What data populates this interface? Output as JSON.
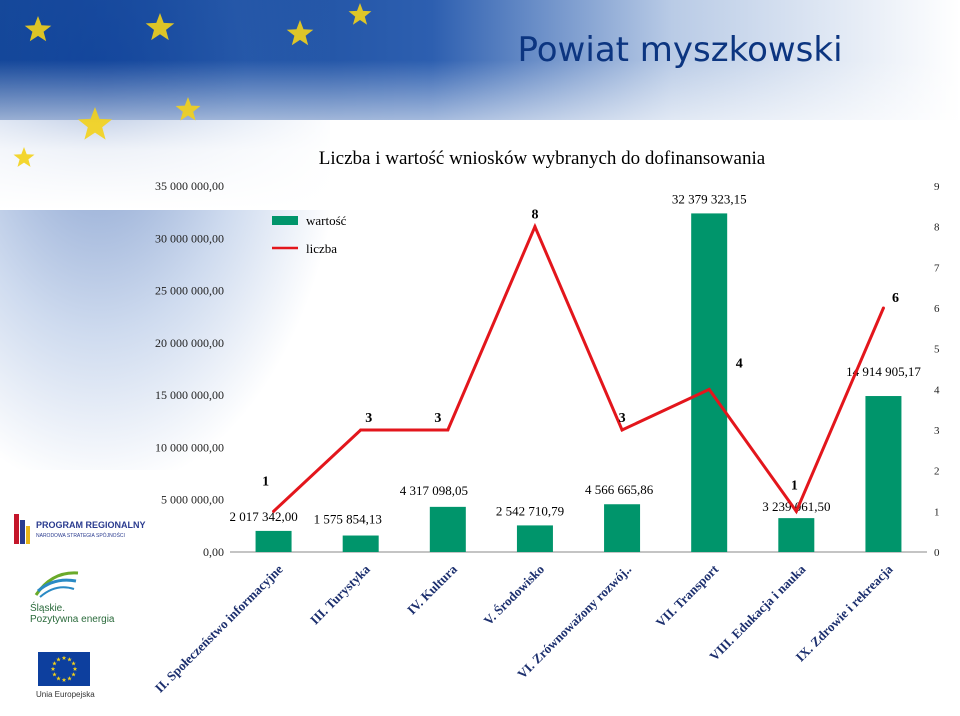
{
  "slide_title": "Powiat myszkowski",
  "logos": {
    "program_regionalny": "PROGRAM REGIONALNY",
    "program_regionalny_sub": "NARODOWA STRATEGIA SPÓJNOŚCI",
    "slaskie": "Śląskie.",
    "slaskie_tagline": "Pozytywna energia",
    "ue": "Unia Europejska"
  },
  "chart_data": {
    "type": "bar",
    "title": "Liczba i wartość wniosków wybranych do dofinansowania",
    "categories": [
      "II. Społeczeństwo informacyjne",
      "III. Turystyka",
      "IV. Kultura",
      "V. Środowisko",
      "VI. Zrównoważony rozwój..",
      "VII. Transport",
      "VIII. Edukacja i nauka",
      "IX. Zdrowie i rekreacja"
    ],
    "series": [
      {
        "name": "wartość",
        "type": "bar",
        "axis": "left",
        "color": "#00956b",
        "values": [
          2017342.0,
          1575854.13,
          4317098.05,
          2542710.79,
          4566665.86,
          32379323.15,
          3239061.5,
          14914905.17
        ],
        "labels": [
          "2 017 342,00",
          "1 575 854,13",
          "4 317 098,05",
          "2 542 710,79",
          "4 566 665,86",
          "32 379 323,15",
          "3 239 061,50",
          "14 914 905,17"
        ]
      },
      {
        "name": "liczba",
        "type": "line",
        "axis": "right",
        "color": "#e3161c",
        "values": [
          1,
          3,
          3,
          8,
          3,
          4,
          1,
          6
        ],
        "labels": [
          "1",
          "3",
          "3",
          "8",
          "3",
          "4",
          "1",
          "6"
        ]
      }
    ],
    "y_left": {
      "min": 0,
      "max": 35000000,
      "step": 5000000,
      "tick_labels": [
        "0,00",
        "5 000 000,00",
        "10 000 000,00",
        "15 000 000,00",
        "20 000 000,00",
        "25 000 000,00",
        "30 000 000,00",
        "35 000 000,00"
      ]
    },
    "y_right": {
      "min": 0,
      "max": 9,
      "step": 1,
      "tick_labels": [
        "0",
        "1",
        "2",
        "3",
        "4",
        "5",
        "6",
        "7",
        "8",
        "9"
      ]
    },
    "legend_placement": "top-left",
    "grid": false
  }
}
